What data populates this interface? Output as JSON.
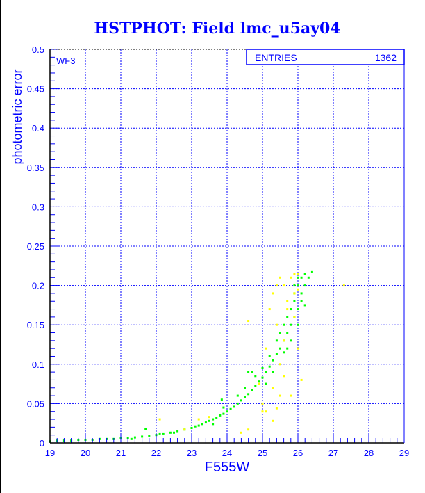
{
  "chart_data": {
    "type": "scatter",
    "title": "HSTPHOT: Field lmc_u5ay04",
    "xlabel": "F555W",
    "ylabel": "photometric error",
    "xlim": [
      19,
      29
    ],
    "ylim": [
      0,
      0.5
    ],
    "x_ticks": [
      "19",
      "20",
      "21",
      "22",
      "23",
      "24",
      "25",
      "26",
      "27",
      "28",
      "29"
    ],
    "y_ticks": [
      "0",
      "0.05",
      "0.1",
      "0.15",
      "0.2",
      "0.25",
      "0.3",
      "0.35",
      "0.4",
      "0.45",
      "0.5"
    ],
    "grid": true,
    "panel_label": "WF3",
    "stats_box": {
      "label": "ENTRIES",
      "value": "1362"
    },
    "colors": {
      "axis_text": "#0000ff",
      "grid": "#0000ff",
      "series_green": "#00ff00",
      "series_yellow": "#ffff00"
    },
    "series": [
      {
        "color": "#00ff00",
        "points": [
          [
            19.0,
            0.002
          ],
          [
            19.2,
            0.003
          ],
          [
            19.4,
            0.003
          ],
          [
            19.6,
            0.003
          ],
          [
            19.8,
            0.004
          ],
          [
            20.0,
            0.004
          ],
          [
            20.2,
            0.004
          ],
          [
            20.4,
            0.005
          ],
          [
            20.6,
            0.005
          ],
          [
            20.8,
            0.005
          ],
          [
            21.0,
            0.006
          ],
          [
            21.2,
            0.006
          ],
          [
            21.3,
            0.005
          ],
          [
            21.4,
            0.007
          ],
          [
            21.6,
            0.008
          ],
          [
            21.7,
            0.018
          ],
          [
            21.8,
            0.009
          ],
          [
            22.0,
            0.01
          ],
          [
            22.1,
            0.012
          ],
          [
            22.2,
            0.012
          ],
          [
            22.4,
            0.013
          ],
          [
            22.5,
            0.013
          ],
          [
            22.6,
            0.015
          ],
          [
            22.8,
            0.017
          ],
          [
            23.0,
            0.019
          ],
          [
            23.1,
            0.021
          ],
          [
            23.2,
            0.022
          ],
          [
            23.3,
            0.024
          ],
          [
            23.4,
            0.026
          ],
          [
            23.5,
            0.028
          ],
          [
            23.6,
            0.03
          ],
          [
            23.6,
            0.024
          ],
          [
            23.7,
            0.032
          ],
          [
            23.8,
            0.035
          ],
          [
            23.85,
            0.055
          ],
          [
            23.9,
            0.037
          ],
          [
            23.9,
            0.045
          ],
          [
            24.0,
            0.04
          ],
          [
            24.1,
            0.043
          ],
          [
            24.2,
            0.046
          ],
          [
            24.3,
            0.05
          ],
          [
            24.3,
            0.06
          ],
          [
            24.4,
            0.054
          ],
          [
            24.5,
            0.058
          ],
          [
            24.5,
            0.07
          ],
          [
            24.6,
            0.062
          ],
          [
            24.6,
            0.09
          ],
          [
            24.7,
            0.067
          ],
          [
            24.7,
            0.09
          ],
          [
            24.8,
            0.072
          ],
          [
            24.8,
            0.085
          ],
          [
            24.9,
            0.078
          ],
          [
            25.0,
            0.083
          ],
          [
            25.0,
            0.095
          ],
          [
            25.1,
            0.09
          ],
          [
            25.1,
            0.075
          ],
          [
            25.2,
            0.097
          ],
          [
            25.2,
            0.11
          ],
          [
            25.3,
            0.105
          ],
          [
            25.3,
            0.09
          ],
          [
            25.4,
            0.113
          ],
          [
            25.4,
            0.13
          ],
          [
            25.5,
            0.12
          ],
          [
            25.5,
            0.14
          ],
          [
            25.6,
            0.13
          ],
          [
            25.6,
            0.115
          ],
          [
            25.6,
            0.15
          ],
          [
            25.7,
            0.14
          ],
          [
            25.7,
            0.16
          ],
          [
            25.7,
            0.12
          ],
          [
            25.8,
            0.15
          ],
          [
            25.8,
            0.17
          ],
          [
            25.8,
            0.13
          ],
          [
            25.9,
            0.16
          ],
          [
            25.9,
            0.18
          ],
          [
            25.9,
            0.19
          ],
          [
            25.9,
            0.2
          ],
          [
            26.0,
            0.17
          ],
          [
            26.0,
            0.2
          ],
          [
            26.0,
            0.15
          ],
          [
            26.0,
            0.21
          ],
          [
            26.1,
            0.18
          ],
          [
            26.1,
            0.19
          ],
          [
            26.1,
            0.21
          ],
          [
            26.2,
            0.2
          ],
          [
            26.2,
            0.215
          ],
          [
            26.2,
            0.175
          ],
          [
            26.3,
            0.21
          ],
          [
            26.4,
            0.217
          ]
        ]
      },
      {
        "color": "#ffff00",
        "points": [
          [
            22.1,
            0.03
          ],
          [
            22.8,
            0.017
          ],
          [
            23.2,
            0.03
          ],
          [
            23.5,
            0.033
          ],
          [
            24.4,
            0.013
          ],
          [
            24.6,
            0.017
          ],
          [
            24.6,
            0.155
          ],
          [
            24.9,
            0.075
          ],
          [
            25.0,
            0.04
          ],
          [
            25.0,
            0.05
          ],
          [
            25.1,
            0.04
          ],
          [
            25.1,
            0.12
          ],
          [
            25.2,
            0.17
          ],
          [
            25.3,
            0.028
          ],
          [
            25.3,
            0.07
          ],
          [
            25.3,
            0.19
          ],
          [
            25.4,
            0.044
          ],
          [
            25.4,
            0.15
          ],
          [
            25.4,
            0.2
          ],
          [
            25.5,
            0.21
          ],
          [
            25.5,
            0.1
          ],
          [
            25.5,
            0.06
          ],
          [
            25.6,
            0.2
          ],
          [
            25.6,
            0.13
          ],
          [
            25.6,
            0.085
          ],
          [
            25.7,
            0.18
          ],
          [
            25.7,
            0.17
          ],
          [
            25.8,
            0.21
          ],
          [
            25.8,
            0.06
          ],
          [
            25.9,
            0.215
          ],
          [
            25.9,
            0.16
          ],
          [
            25.9,
            0.19
          ],
          [
            26.0,
            0.195
          ],
          [
            26.0,
            0.12
          ],
          [
            26.0,
            0.215
          ],
          [
            26.1,
            0.08
          ],
          [
            27.3,
            0.2
          ]
        ]
      }
    ]
  }
}
